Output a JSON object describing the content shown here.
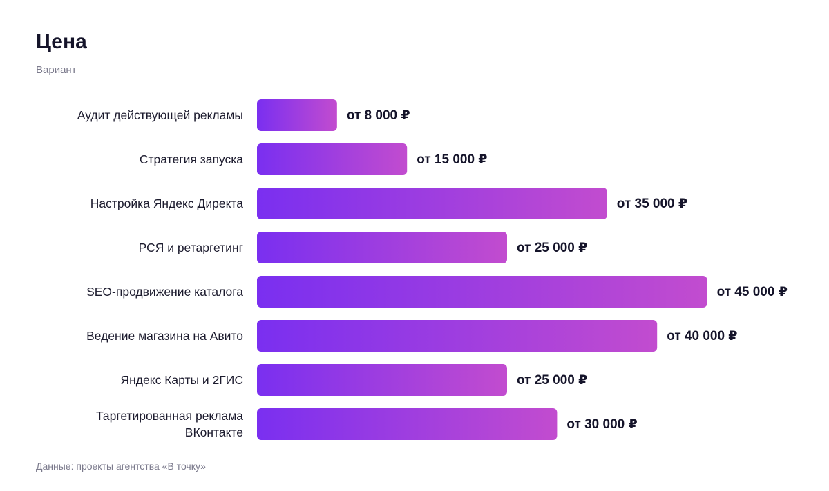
{
  "chart_data": {
    "type": "hbar",
    "title": "Цена",
    "subtitle": "Вариант",
    "source": "Данные: проекты агентства «В точку»",
    "categories": [
      "Аудит действующей рекламы",
      "Стратегия запуска",
      "Настройка Яндекс Директа",
      "РСЯ и ретаргетинг",
      "SEO-продвижение каталога",
      "Ведение магазина на Авито",
      "Яндекс Карты и 2ГИС",
      "Таргетированная реклама ВКонтакте"
    ],
    "values": [
      8000,
      15000,
      35000,
      25000,
      45000,
      40000,
      25000,
      30000
    ],
    "value_labels": [
      "от 8 000 ₽",
      "от 15 000 ₽",
      "от 35 000 ₽",
      "от 25 000 ₽",
      "от 45 000 ₽",
      "от 40 000 ₽",
      "от 25 000 ₽",
      "от 30 000 ₽"
    ],
    "xlim": [
      0,
      50000
    ],
    "colors": [
      "#7a2ff0",
      "#c24ccf"
    ]
  }
}
